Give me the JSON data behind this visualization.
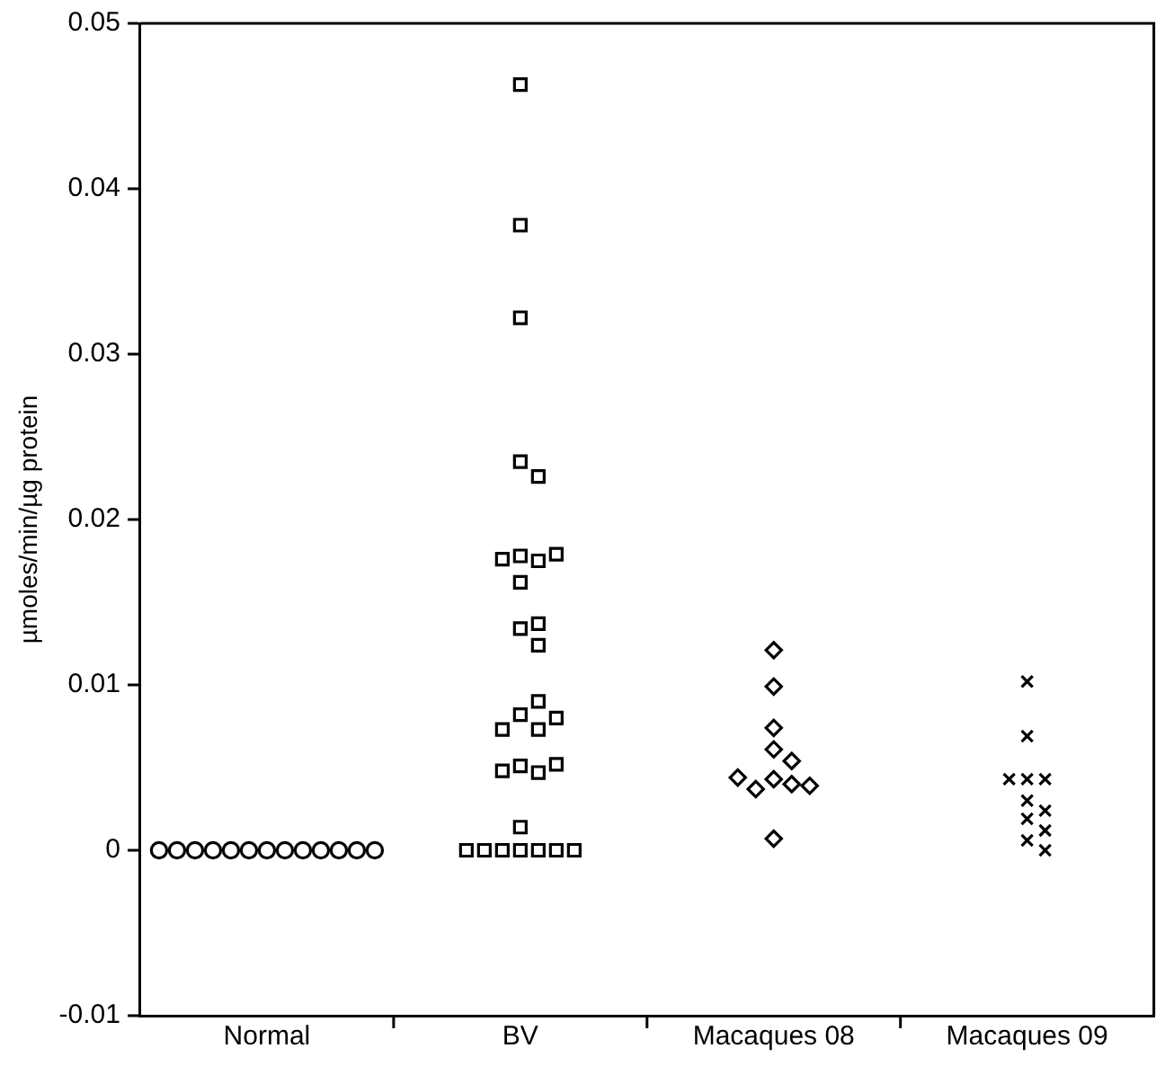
{
  "chart_data": {
    "type": "scatter",
    "ylabel": "µmoles/min/µg protein",
    "categories": [
      "Normal",
      "BV",
      "Macaques 08",
      "Macaques 09"
    ],
    "ylim": [
      -0.01,
      0.05
    ],
    "yticks": [
      -0.01,
      0,
      0.01,
      0.02,
      0.03,
      0.04,
      0.05
    ],
    "grid": false,
    "legend": false,
    "series": [
      {
        "color": "#000000",
        "marker": "circle",
        "x": [
          "Normal",
          "Normal",
          "Normal",
          "Normal",
          "Normal",
          "Normal",
          "Normal",
          "Normal",
          "Normal",
          "Normal",
          "Normal",
          "Normal",
          "Normal"
        ],
        "values": [
          0,
          0,
          0,
          0,
          0,
          0,
          0,
          0,
          0,
          0,
          0,
          0,
          0
        ]
      },
      {
        "color": "#000000",
        "marker": "square",
        "x": [
          "BV",
          "BV",
          "BV",
          "BV",
          "BV",
          "BV",
          "BV",
          "BV",
          "BV",
          "BV",
          "BV",
          "BV",
          "BV",
          "BV",
          "BV",
          "BV",
          "BV",
          "BV",
          "BV",
          "BV",
          "BV",
          "BV",
          "BV",
          "BV",
          "BV",
          "BV",
          "BV",
          "BV",
          "BV",
          "BV"
        ],
        "values": [
          0.0463,
          0.0378,
          0.0322,
          0.0235,
          0.0226,
          0.0178,
          0.0175,
          0.0162,
          0.0176,
          0.0179,
          0.0134,
          0.0124,
          0.0137,
          0.0082,
          0.0073,
          0.0073,
          0.008,
          0.009,
          0.0051,
          0.0047,
          0.0048,
          0.0052,
          0.0014,
          0,
          0,
          0,
          0,
          0,
          0,
          0
        ]
      },
      {
        "color": "#000000",
        "marker": "diamond",
        "x": [
          "Macaques 08",
          "Macaques 08",
          "Macaques 08",
          "Macaques 08",
          "Macaques 08",
          "Macaques 08",
          "Macaques 08",
          "Macaques 08",
          "Macaques 08",
          "Macaques 08",
          "Macaques 08"
        ],
        "values": [
          0.0121,
          0.0099,
          0.0074,
          0.0061,
          0.0054,
          0.0043,
          0.004,
          0.0037,
          0.0039,
          0.0044,
          0.0007
        ]
      },
      {
        "color": "#000000",
        "marker": "cross",
        "x": [
          "Macaques 09",
          "Macaques 09",
          "Macaques 09",
          "Macaques 09",
          "Macaques 09",
          "Macaques 09",
          "Macaques 09",
          "Macaques 09",
          "Macaques 09",
          "Macaques 09",
          "Macaques 09"
        ],
        "values": [
          0.0102,
          0.0069,
          0.0043,
          0.0043,
          0.0043,
          0.003,
          0.0024,
          0.0019,
          0.0012,
          0.0006,
          0
        ]
      }
    ]
  }
}
